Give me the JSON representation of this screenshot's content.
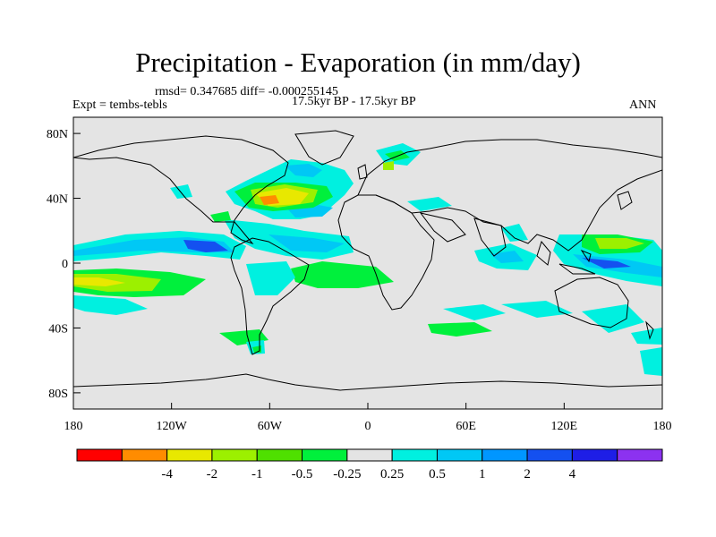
{
  "title": "Precipitation - Evaporation (in mm/day)",
  "stats_line": "rmsd= 0.347685 diff= -0.000255145",
  "period": "17.5kyr BP - 17.5kyr BP",
  "left_label": "Expt = tembs-tebls",
  "right_label": "ANN",
  "lat_ticks": [
    {
      "label": "80N",
      "lat": 80
    },
    {
      "label": "40N",
      "lat": 40
    },
    {
      "label": "0",
      "lat": 0
    },
    {
      "label": "40S",
      "lat": -40
    },
    {
      "label": "80S",
      "lat": -80
    }
  ],
  "lon_ticks": [
    {
      "label": "180",
      "lon": -180
    },
    {
      "label": "120W",
      "lon": -120
    },
    {
      "label": "60W",
      "lon": -60
    },
    {
      "label": "0",
      "lon": 0
    },
    {
      "label": "60E",
      "lon": 60
    },
    {
      "label": "120E",
      "lon": 120
    },
    {
      "label": "180",
      "lon": 180
    }
  ],
  "colorbar": {
    "colors": [
      "#ff0000",
      "#ff8c00",
      "#e8e800",
      "#9cf000",
      "#4fe000",
      "#00f03c",
      "#e4e4e4",
      "#00f0e0",
      "#00c8f5",
      "#0096ff",
      "#1450f0",
      "#1e1ee6",
      "#8c32f0"
    ],
    "labels": [
      "-4",
      "-2",
      "-1",
      "-0.5",
      "-0.25",
      "0.25",
      "0.5",
      "1",
      "2",
      "4"
    ]
  },
  "colors": {
    "land_background": "#e4e4e4",
    "coast": "#000000"
  }
}
